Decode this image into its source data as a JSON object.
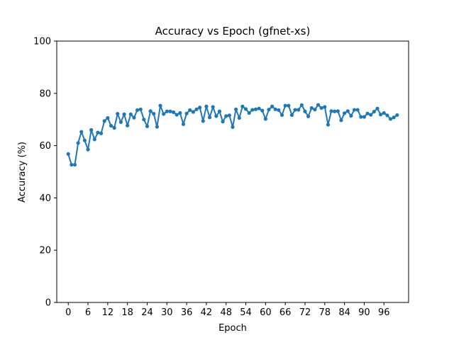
{
  "chart_data": {
    "type": "line",
    "title": "Accuracy vs Epoch  (gfnet-xs)",
    "xlabel": "Epoch",
    "ylabel": "Accuracy (%)",
    "xlim": [
      -3.5,
      103.5
    ],
    "ylim": [
      0,
      100
    ],
    "x_ticks": [
      0,
      6,
      12,
      18,
      24,
      30,
      36,
      42,
      48,
      54,
      60,
      66,
      72,
      78,
      84,
      90,
      96
    ],
    "y_ticks": [
      0,
      20,
      40,
      60,
      80,
      100
    ],
    "grid": false,
    "legend": "none",
    "color": "#1f77b4",
    "series": [
      {
        "x": [
          0,
          1,
          2,
          3,
          4,
          5,
          6,
          7,
          8,
          9,
          10,
          11,
          12,
          13,
          14,
          15,
          16,
          17,
          18,
          19,
          20,
          21,
          22,
          23,
          24,
          25,
          26,
          27,
          28,
          29,
          30,
          31,
          32,
          33,
          34,
          35,
          36,
          37,
          38,
          39,
          40,
          41,
          42,
          43,
          44,
          45,
          46,
          47,
          48,
          49,
          50,
          51,
          52,
          53,
          54,
          55,
          56,
          57,
          58,
          59,
          60,
          61,
          62,
          63,
          64,
          65,
          66,
          67,
          68,
          69,
          70,
          71,
          72,
          73,
          74,
          75,
          76,
          77,
          78,
          79,
          80,
          81,
          82,
          83,
          84,
          85,
          86,
          87,
          88,
          89,
          90,
          91,
          92,
          93,
          94,
          95,
          96,
          97,
          98,
          99,
          100
        ],
        "values": [
          56.8,
          52.7,
          52.7,
          61.0,
          65.3,
          62.0,
          58.5,
          66.0,
          62.4,
          65.0,
          64.7,
          69.4,
          70.6,
          67.6,
          66.8,
          72.2,
          69.0,
          72.0,
          67.7,
          72.0,
          70.7,
          73.6,
          73.9,
          70.0,
          67.4,
          73.2,
          72.2,
          67.2,
          75.3,
          72.1,
          73.1,
          73.1,
          72.8,
          71.8,
          72.5,
          68.2,
          72.3,
          73.6,
          72.9,
          73.9,
          74.6,
          69.4,
          75.0,
          70.8,
          74.8,
          71.3,
          73.1,
          69.2,
          71.3,
          71.6,
          67.1,
          73.9,
          70.6,
          75.0,
          74.0,
          72.5,
          73.7,
          73.9,
          74.2,
          73.4,
          70.2,
          73.8,
          75.0,
          73.9,
          73.6,
          71.7,
          75.3,
          75.3,
          71.7,
          73.7,
          73.7,
          75.5,
          73.1,
          71.2,
          74.4,
          73.8,
          75.6,
          74.4,
          74.8,
          68.0,
          73.2,
          73.1,
          73.2,
          69.7,
          72.4,
          73.2,
          71.4,
          73.7,
          73.7,
          71.0,
          71.0,
          72.3,
          71.8,
          73.0,
          74.2,
          71.9,
          72.5,
          71.6,
          70.2,
          70.8,
          71.7
        ]
      }
    ]
  }
}
